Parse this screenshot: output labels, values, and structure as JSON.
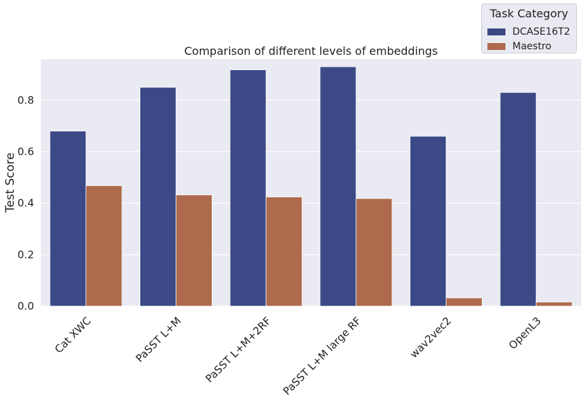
{
  "chart_data": {
    "type": "bar",
    "title": "Comparison of different levels of embeddings",
    "xlabel": "",
    "ylabel": "Test Score",
    "ylim": [
      0,
      0.96
    ],
    "yticks": [
      "0.0",
      "0.2",
      "0.4",
      "0.6",
      "0.8"
    ],
    "grid": true,
    "categories": [
      "Cat XWC",
      "PaSST L+M",
      "PaSST L+M+2RF",
      "PaSST L+M large RF",
      "wav2vec2",
      "OpenL3"
    ],
    "series": [
      {
        "name": "DCASE16T2",
        "color": "#3b4a87",
        "values": [
          0.68,
          0.85,
          0.918,
          0.93,
          0.66,
          0.83
        ]
      },
      {
        "name": "Maestro",
        "color": "#ad6a4c",
        "values": [
          0.468,
          0.432,
          0.424,
          0.418,
          0.032,
          0.016
        ]
      }
    ],
    "legend": {
      "title": "Task Category",
      "placement": "top-right"
    }
  }
}
